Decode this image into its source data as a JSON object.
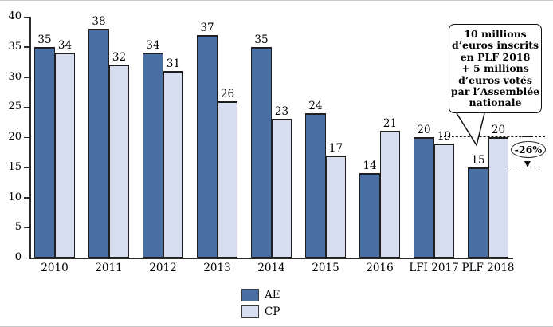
{
  "chart_data": {
    "type": "bar",
    "title": "",
    "xlabel": "",
    "ylabel": "",
    "categories": [
      "2010",
      "2011",
      "2012",
      "2013",
      "2014",
      "2015",
      "2016",
      "LFI 2017",
      "PLF 2018"
    ],
    "series": [
      {
        "name": "AE",
        "color": "#4a6fa4",
        "values": [
          35,
          38,
          34,
          37,
          35,
          24,
          14,
          20,
          15
        ]
      },
      {
        "name": "CP",
        "color": "#d7def0",
        "values": [
          34,
          32,
          31,
          26,
          23,
          17,
          21,
          19,
          20
        ]
      }
    ],
    "ylim": [
      0,
      40
    ],
    "yticks": [
      0,
      5,
      10,
      15,
      20,
      25,
      30,
      35,
      40
    ],
    "grid": false,
    "bar_value_labels_shown": true,
    "legend_position": "bottom-center",
    "annotations": {
      "callout_text": "10 millions d’euros inscrits en PLF 2018 + 5 millions d’euros votés par l’Assemblée nationale",
      "callout_lines": [
        "10 millions",
        "d’euros inscrits",
        "en PLF 2018",
        "+ 5 millions",
        "d’euros votés",
        "par l’Assemblée",
        "nationale"
      ],
      "callout_points_to": "PLF 2018",
      "delta_label": "-26%",
      "dashed_guide_levels": [
        20,
        15
      ]
    }
  }
}
